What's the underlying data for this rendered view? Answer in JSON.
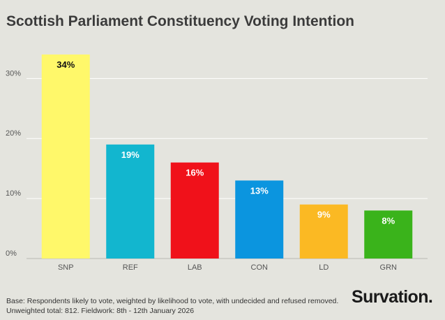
{
  "header": {
    "title": "Scottish Parliament Constituency Voting Intention"
  },
  "chart_data": {
    "type": "bar",
    "title": "Scottish Parliament Constituency Voting Intention",
    "xlabel": "",
    "ylabel": "",
    "categories": [
      "SNP",
      "REF",
      "LAB",
      "CON",
      "LD",
      "GRN"
    ],
    "values": [
      34,
      19,
      16,
      13,
      9,
      8
    ],
    "data_labels": [
      "34%",
      "19%",
      "16%",
      "13%",
      "9%",
      "8%"
    ],
    "colors": [
      "#fff86a",
      "#12b6cf",
      "#f0111a",
      "#0b95df",
      "#fbb923",
      "#3ab31b"
    ],
    "label_colors": [
      "#111111",
      "#ffffff",
      "#ffffff",
      "#ffffff",
      "#ffffff",
      "#ffffff"
    ],
    "ylim": [
      0,
      34
    ],
    "yticks": [
      0,
      10,
      20,
      30
    ],
    "ytick_labels": [
      "0%",
      "10%",
      "20%",
      "30%"
    ],
    "grid": true,
    "legend": "none"
  },
  "footer": {
    "note_line1": "Base: Respondents likely to vote, weighted by likelihood to vote, with undecided and refused removed.",
    "note_line2": "Unweighted total: 812. Fieldwork: 8th - 12th January 2026",
    "brand": "Survation."
  }
}
